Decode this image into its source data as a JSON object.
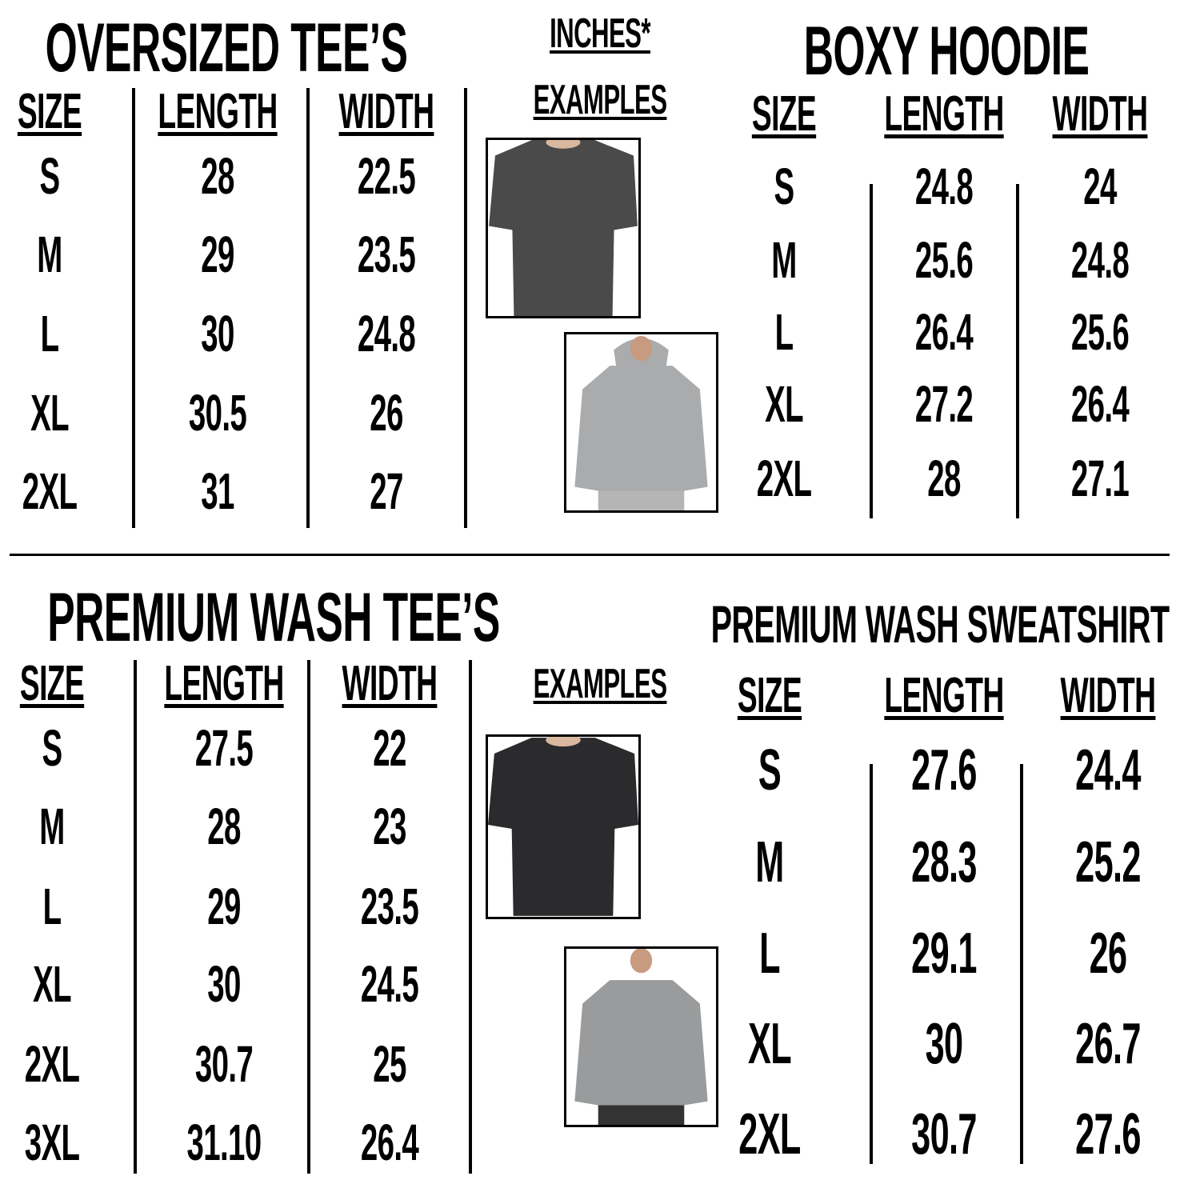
{
  "units_label": "INCHES*",
  "examples_label": "EXAMPLES",
  "tables": [
    {
      "title": "OVERSIZED TEE’S",
      "headers": [
        "SIZE",
        "LENGTH",
        "WIDTH"
      ],
      "rows": [
        [
          "S",
          "28",
          "22.5"
        ],
        [
          "M",
          "29",
          "23.5"
        ],
        [
          "L",
          "30",
          "24.8"
        ],
        [
          "XL",
          "30.5",
          "26"
        ],
        [
          "2XL",
          "31",
          "27"
        ]
      ]
    },
    {
      "title": "BOXY HOODIE",
      "headers": [
        "SIZE",
        "LENGTH",
        "WIDTH"
      ],
      "rows": [
        [
          "S",
          "24.8",
          "24"
        ],
        [
          "M",
          "25.6",
          "24.8"
        ],
        [
          "L",
          "26.4",
          "25.6"
        ],
        [
          "XL",
          "27.2",
          "26.4"
        ],
        [
          "2XL",
          "28",
          "27.1"
        ]
      ]
    },
    {
      "title": "PREMIUM WASH TEE’S",
      "headers": [
        "SIZE",
        "LENGTH",
        "WIDTH"
      ],
      "rows": [
        [
          "S",
          "27.5",
          "22"
        ],
        [
          "M",
          "28",
          "23"
        ],
        [
          "L",
          "29",
          "23.5"
        ],
        [
          "XL",
          "30",
          "24.5"
        ],
        [
          "2XL",
          "30.7",
          "25"
        ],
        [
          "3XL",
          "31.10",
          "26.4"
        ]
      ]
    },
    {
      "title": "PREMIUM WASH SWEATSHIRT",
      "headers": [
        "SIZE",
        "LENGTH",
        "WIDTH"
      ],
      "rows": [
        [
          "S",
          "27.6",
          "24.4"
        ],
        [
          "M",
          "28.3",
          "25.2"
        ],
        [
          "L",
          "29.1",
          "26"
        ],
        [
          "XL",
          "30",
          "26.7"
        ],
        [
          "2XL",
          "30.7",
          "27.6"
        ]
      ]
    }
  ],
  "photos": [
    {
      "name": "oversized-tee-photo",
      "garment": "tee",
      "color": "#4a4a4a"
    },
    {
      "name": "boxy-hoodie-photo",
      "garment": "hoodie",
      "color": "#a9abad"
    },
    {
      "name": "premium-wash-tee-photo",
      "garment": "tee",
      "color": "#2b2b2d"
    },
    {
      "name": "premium-wash-sweatshirt-photo",
      "garment": "sweatshirt",
      "color": "#9a9b9c"
    }
  ]
}
